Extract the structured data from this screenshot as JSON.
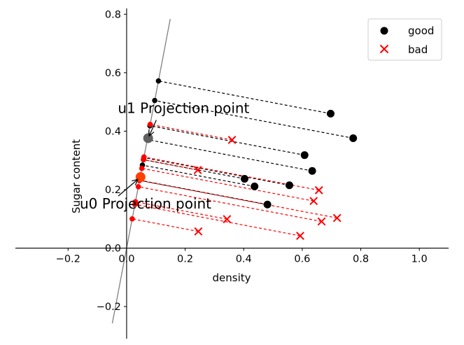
{
  "chart_data": {
    "type": "scatter",
    "title": "",
    "xlabel": "density",
    "ylabel": "Sugar content",
    "xlim": [
      -0.38,
      1.1
    ],
    "ylim": [
      -0.31,
      0.82
    ],
    "spines": "centered-at-origin",
    "x_ticks": [
      {
        "value": -0.2,
        "label": "−0.2"
      },
      {
        "value": 0.0,
        "label": "0.0"
      },
      {
        "value": 0.2,
        "label": "0.2"
      },
      {
        "value": 0.4,
        "label": "0.4"
      },
      {
        "value": 0.6,
        "label": "0.6"
      },
      {
        "value": 0.8,
        "label": "0.8"
      },
      {
        "value": 1.0,
        "label": "1.0"
      }
    ],
    "y_ticks": [
      {
        "value": -0.2,
        "label": "−0.2"
      },
      {
        "value": 0.0,
        "label": "0.0"
      },
      {
        "value": 0.2,
        "label": "0.2"
      },
      {
        "value": 0.4,
        "label": "0.4"
      },
      {
        "value": 0.6,
        "label": "0.6"
      },
      {
        "value": 0.8,
        "label": "0.8"
      }
    ],
    "projection_line": {
      "slope": 5.26,
      "x_range": [
        -0.049,
        0.149
      ],
      "color": "#808080"
    },
    "series": [
      {
        "name": "good",
        "marker": "circle",
        "color": "#000000",
        "line_color": "#000000",
        "points": [
          {
            "x": 0.697,
            "y": 0.46
          },
          {
            "x": 0.774,
            "y": 0.376
          },
          {
            "x": 0.634,
            "y": 0.264
          },
          {
            "x": 0.608,
            "y": 0.318
          },
          {
            "x": 0.556,
            "y": 0.215
          },
          {
            "x": 0.403,
            "y": 0.237
          },
          {
            "x": 0.481,
            "y": 0.149
          },
          {
            "x": 0.437,
            "y": 0.211
          }
        ]
      },
      {
        "name": "bad",
        "marker": "x",
        "color": "#ff0000",
        "line_color": "#ff0000",
        "points": [
          {
            "x": 0.666,
            "y": 0.091
          },
          {
            "x": 0.243,
            "y": 0.267
          },
          {
            "x": 0.245,
            "y": 0.057
          },
          {
            "x": 0.343,
            "y": 0.099
          },
          {
            "x": 0.639,
            "y": 0.161
          },
          {
            "x": 0.657,
            "y": 0.198
          },
          {
            "x": 0.36,
            "y": 0.37
          },
          {
            "x": 0.593,
            "y": 0.042
          },
          {
            "x": 0.719,
            "y": 0.103
          }
        ]
      }
    ],
    "projection_centers": [
      {
        "label": "u1 Projection point",
        "x": 0.0735,
        "y": 0.376,
        "color": "#606060",
        "text_x": -0.03,
        "text_y": 0.462
      },
      {
        "label": "u0 Projection point",
        "x": 0.0475,
        "y": 0.243,
        "color": "#ff4000",
        "text_x": -0.16,
        "text_y": 0.135
      }
    ],
    "legend": {
      "position": "top-right",
      "entries": [
        "good",
        "bad"
      ]
    }
  }
}
